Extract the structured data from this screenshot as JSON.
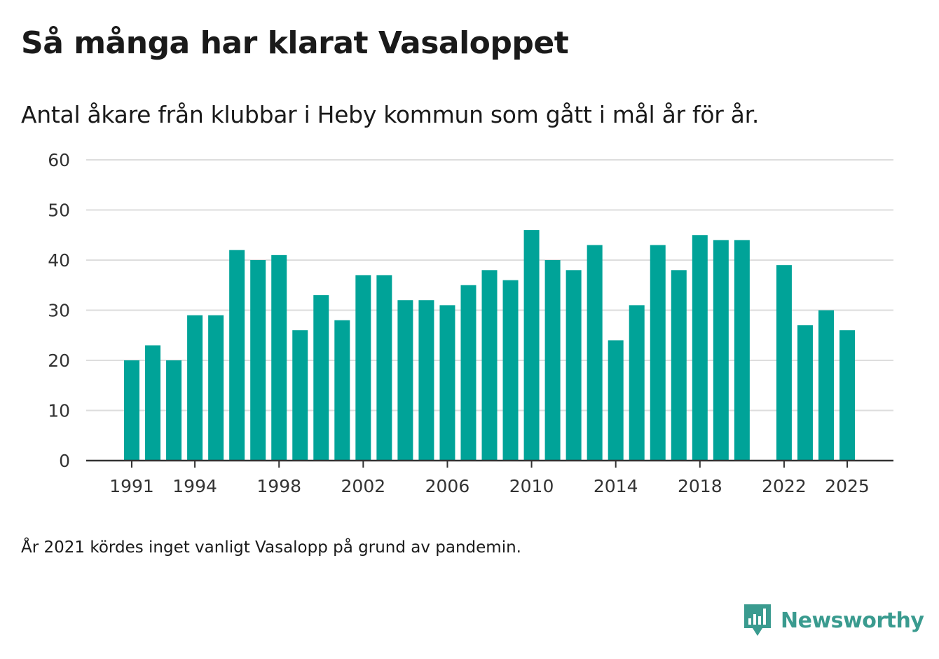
{
  "title": "Så många har klarat Vasaloppet",
  "subtitle": "Antal åkare från klubbar i Heby kommun som gått i mål år för år.",
  "footnote": "År 2021 kördes inget vanligt Vasalopp på grund av pandemin.",
  "brand": {
    "name": "Newsworthy",
    "color": "#3a9b8f"
  },
  "colors": {
    "bar": "#00a398",
    "grid": "#dddddd",
    "axis": "#333333"
  },
  "chart_data": {
    "type": "bar",
    "title": "Så många har klarat Vasaloppet",
    "xlabel": "",
    "ylabel": "",
    "ylim": [
      0,
      60
    ],
    "y_ticks": [
      0,
      10,
      20,
      30,
      40,
      50,
      60
    ],
    "x_tick_labels": [
      "1991",
      "1994",
      "1998",
      "2002",
      "2006",
      "2010",
      "2014",
      "2018",
      "2022",
      "2025"
    ],
    "grid": true,
    "categories": [
      "1991",
      "1992",
      "1993",
      "1994",
      "1995",
      "1996",
      "1997",
      "1998",
      "1999",
      "2000",
      "2001",
      "2002",
      "2003",
      "2004",
      "2005",
      "2006",
      "2007",
      "2008",
      "2009",
      "2010",
      "2011",
      "2012",
      "2013",
      "2014",
      "2015",
      "2016",
      "2017",
      "2018",
      "2019",
      "2020",
      "2021",
      "2022",
      "2023",
      "2024",
      "2025"
    ],
    "values": [
      20,
      23,
      20,
      29,
      29,
      42,
      40,
      41,
      26,
      33,
      28,
      37,
      37,
      32,
      32,
      31,
      35,
      38,
      36,
      46,
      40,
      38,
      43,
      24,
      31,
      43,
      38,
      45,
      44,
      44,
      null,
      39,
      27,
      30,
      26
    ]
  }
}
